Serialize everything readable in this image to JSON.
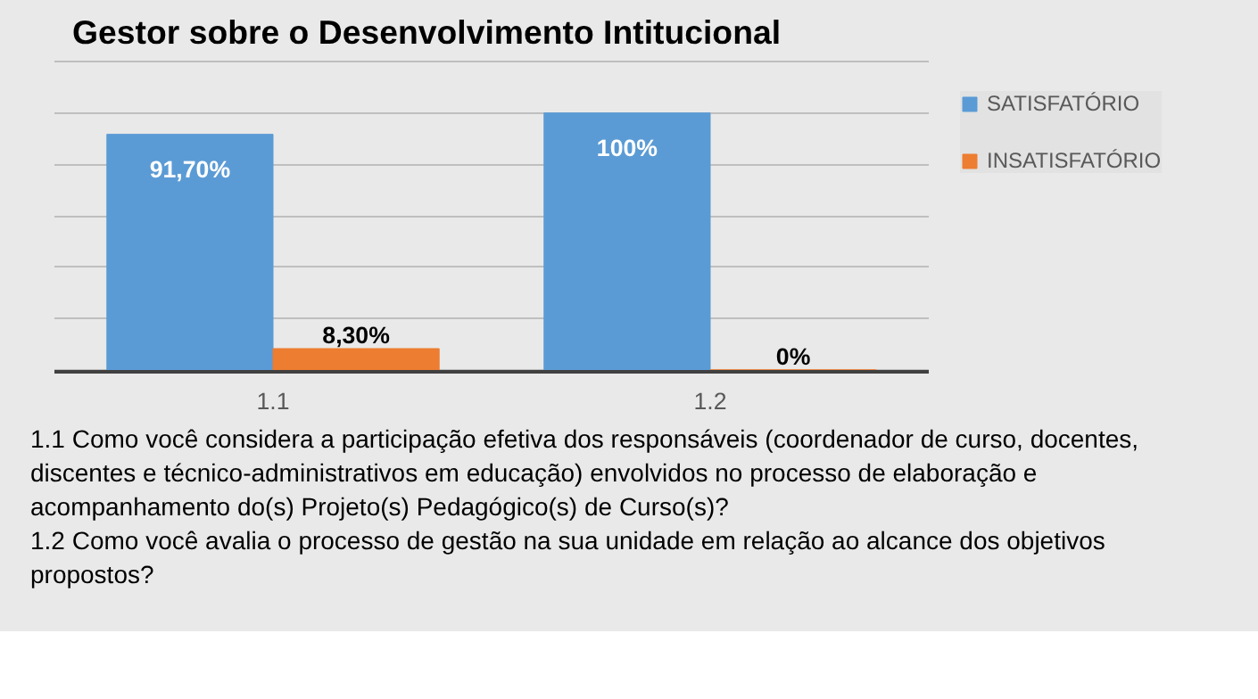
{
  "chart_data": {
    "type": "bar",
    "title": "Gestor sobre o Desenvolvimento Intitucional",
    "categories": [
      "1.1",
      "1.2"
    ],
    "series": [
      {
        "name": "SATISFATÓRIO",
        "color": "#5b9bd5",
        "values": [
          91.7,
          100
        ],
        "value_labels": [
          "91,70%",
          "100%"
        ]
      },
      {
        "name": "INSATISFATÓRIO",
        "color": "#ed7d31",
        "values": [
          8.3,
          0
        ],
        "value_labels": [
          "8,30%",
          "0%"
        ]
      }
    ],
    "ylim": [
      0,
      120
    ],
    "yticks": [
      {
        "value": 0,
        "label": null
      },
      {
        "value": 20,
        "label": null
      },
      {
        "value": 40,
        "label": null
      },
      {
        "value": 60,
        "label": null
      },
      {
        "value": 80,
        "label": null
      },
      {
        "value": 100,
        "label": null
      },
      {
        "value": 120,
        "label": null
      }
    ],
    "tick_labels": "x",
    "grid": "y",
    "legend": "right",
    "annotations": [
      "1.1 Como você considera a participação efetiva dos responsáveis (coordenador de curso, docentes, discentes e técnico-administrativos em educação) envolvidos no processo de elaboração e acompanhamento do(s) Projeto(s) Pedagógico(s) de Curso(s)?",
      "1.2 Como você avalia o processo de gestão na sua unidade em relação ao alcance dos objetivos propostos?"
    ]
  }
}
